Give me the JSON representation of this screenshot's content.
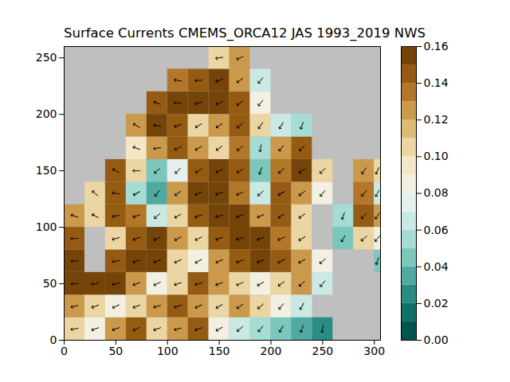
{
  "chart_data": {
    "type": "vector_field",
    "title": "Surface Currents CMEMS_ORCA12 JAS 1993_2019 NWS",
    "xlim": [
      0,
      306
    ],
    "ylim": [
      0,
      260
    ],
    "xticks": [
      0,
      50,
      100,
      150,
      200,
      250,
      300
    ],
    "yticks": [
      0,
      50,
      100,
      150,
      200,
      250
    ],
    "x_edges": [
      0,
      20,
      40,
      60,
      80,
      100,
      120,
      140,
      160,
      180,
      200,
      220,
      240,
      260,
      280,
      300,
      306
    ],
    "y_edges": [
      0,
      20,
      40,
      60,
      80,
      100,
      120,
      140,
      160,
      180,
      200,
      220,
      240,
      260
    ],
    "speed": [
      [
        0.1,
        0.08,
        0.12,
        0.14,
        0.1,
        0.12,
        0.14,
        0.08,
        0.06,
        0.05,
        0.04,
        0.03,
        0.02,
        null,
        null,
        null
      ],
      [
        0.12,
        0.1,
        0.08,
        0.1,
        0.12,
        0.14,
        0.12,
        0.1,
        0.12,
        0.1,
        0.08,
        0.06,
        null,
        null,
        null,
        null
      ],
      [
        0.16,
        0.16,
        0.15,
        0.12,
        0.08,
        0.1,
        0.14,
        0.12,
        0.1,
        0.08,
        0.1,
        0.12,
        0.06,
        null,
        null,
        null
      ],
      [
        0.15,
        null,
        0.14,
        0.16,
        0.15,
        0.1,
        0.08,
        0.12,
        0.14,
        0.15,
        0.14,
        0.12,
        0.08,
        null,
        null,
        0.04
      ],
      [
        0.14,
        null,
        0.1,
        0.14,
        0.16,
        0.12,
        0.1,
        0.14,
        0.16,
        0.15,
        0.13,
        0.1,
        null,
        0.04,
        0.1,
        0.08
      ],
      [
        0.12,
        0.1,
        0.14,
        0.13,
        0.06,
        0.1,
        0.14,
        0.16,
        0.15,
        0.12,
        0.14,
        0.1,
        null,
        0.05,
        0.14,
        0.12
      ],
      [
        null,
        0.1,
        0.14,
        0.05,
        0.03,
        0.12,
        0.15,
        0.16,
        0.13,
        0.06,
        0.14,
        0.12,
        0.08,
        null,
        0.13,
        0.06
      ],
      [
        null,
        null,
        0.14,
        0.1,
        0.04,
        0.07,
        0.14,
        0.16,
        0.14,
        0.04,
        0.13,
        0.15,
        0.1,
        null,
        0.12,
        0.1
      ],
      [
        null,
        null,
        null,
        0.09,
        0.12,
        0.14,
        0.12,
        0.1,
        0.13,
        0.05,
        0.12,
        0.14,
        null,
        null,
        null,
        null
      ],
      [
        null,
        null,
        null,
        0.12,
        0.16,
        0.14,
        0.1,
        0.12,
        0.14,
        0.1,
        0.06,
        0.05,
        null,
        null,
        null,
        null
      ],
      [
        null,
        null,
        null,
        null,
        0.14,
        0.15,
        0.16,
        0.16,
        0.14,
        0.08,
        null,
        null,
        null,
        null,
        null,
        null
      ],
      [
        null,
        null,
        null,
        null,
        null,
        0.13,
        0.14,
        0.15,
        0.12,
        0.06,
        null,
        null,
        null,
        null,
        null,
        null
      ],
      [
        null,
        null,
        null,
        null,
        null,
        null,
        null,
        0.1,
        0.12,
        null,
        null,
        null,
        null,
        null,
        null,
        null
      ]
    ],
    "direction": [
      [
        260,
        250,
        250,
        245,
        250,
        255,
        250,
        240,
        230,
        220,
        210,
        200,
        190,
        null,
        null,
        null
      ],
      [
        255,
        250,
        245,
        250,
        255,
        250,
        245,
        240,
        235,
        230,
        220,
        210,
        null,
        null,
        null,
        null
      ],
      [
        265,
        260,
        255,
        250,
        245,
        250,
        255,
        250,
        245,
        240,
        235,
        230,
        220,
        null,
        null,
        null
      ],
      [
        265,
        null,
        260,
        255,
        250,
        245,
        240,
        245,
        250,
        250,
        245,
        240,
        230,
        null,
        null,
        200
      ],
      [
        270,
        null,
        255,
        250,
        245,
        240,
        245,
        250,
        255,
        250,
        245,
        240,
        null,
        210,
        230,
        220
      ],
      [
        290,
        300,
        260,
        250,
        230,
        240,
        250,
        255,
        250,
        245,
        240,
        235,
        null,
        200,
        225,
        215
      ],
      [
        null,
        310,
        280,
        240,
        220,
        235,
        245,
        250,
        245,
        230,
        240,
        235,
        220,
        null,
        220,
        210
      ],
      [
        null,
        null,
        300,
        270,
        230,
        225,
        240,
        245,
        240,
        200,
        230,
        235,
        225,
        null,
        215,
        205
      ],
      [
        null,
        null,
        null,
        290,
        260,
        245,
        240,
        235,
        230,
        190,
        220,
        225,
        null,
        null,
        null,
        null
      ],
      [
        null,
        null,
        null,
        300,
        280,
        250,
        240,
        235,
        230,
        215,
        210,
        200,
        null,
        null,
        null,
        null
      ],
      [
        null,
        null,
        null,
        null,
        290,
        270,
        255,
        245,
        235,
        220,
        null,
        null,
        null,
        null,
        null,
        null
      ],
      [
        null,
        null,
        null,
        null,
        null,
        280,
        265,
        250,
        235,
        220,
        null,
        null,
        null,
        null,
        null,
        null
      ],
      [
        null,
        null,
        null,
        null,
        null,
        null,
        null,
        260,
        245,
        null,
        null,
        null,
        null,
        null,
        null,
        null
      ]
    ],
    "colorbar": {
      "range": [
        0,
        0.16
      ],
      "levels": [
        0,
        0.01,
        0.02,
        0.03,
        0.04,
        0.05,
        0.06,
        0.07,
        0.08,
        0.09,
        0.1,
        0.11,
        0.12,
        0.13,
        0.14,
        0.15,
        0.16
      ],
      "ticks": [
        {
          "value": 0,
          "label": "0.00"
        },
        {
          "value": 0.02,
          "label": "0.02"
        },
        {
          "value": 0.04,
          "label": "0.04"
        },
        {
          "value": 0.06,
          "label": "0.06"
        },
        {
          "value": 0.08,
          "label": "0.08"
        },
        {
          "value": 0.1,
          "label": "0.10"
        },
        {
          "value": 0.12,
          "label": "0.12"
        },
        {
          "value": 0.14,
          "label": "0.14"
        },
        {
          "value": 0.16,
          "label": "0.16"
        }
      ]
    }
  }
}
